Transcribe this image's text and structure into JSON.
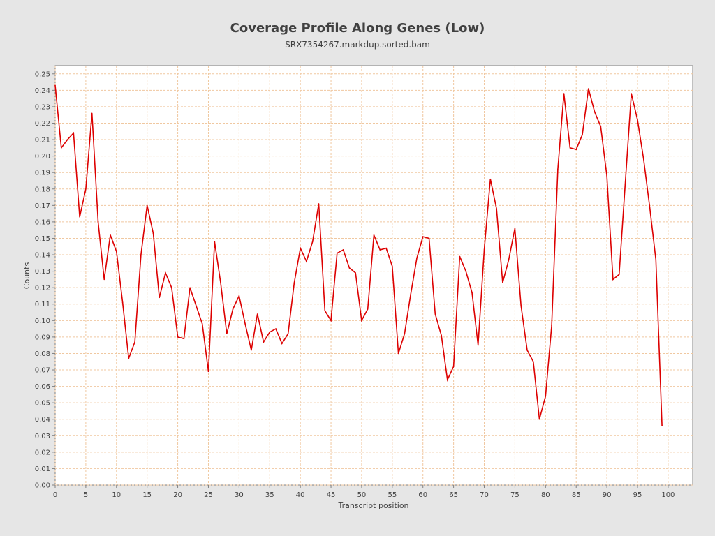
{
  "chart_data": {
    "type": "line",
    "title": "Coverage Profile Along Genes (Low)",
    "subtitle": "SRX7354267.markdup.sorted.bam",
    "xlabel": "Transcript position",
    "ylabel": "Counts",
    "xlim": [
      0,
      104
    ],
    "ylim": [
      0,
      0.255
    ],
    "x_ticks": [
      "0",
      "5",
      "10",
      "15",
      "20",
      "25",
      "30",
      "35",
      "40",
      "45",
      "50",
      "55",
      "60",
      "65",
      "70",
      "75",
      "80",
      "85",
      "90",
      "95",
      "100"
    ],
    "y_ticks": [
      "0.00",
      "0.01",
      "0.02",
      "0.03",
      "0.04",
      "0.05",
      "0.06",
      "0.07",
      "0.08",
      "0.09",
      "0.10",
      "0.11",
      "0.12",
      "0.13",
      "0.14",
      "0.15",
      "0.16",
      "0.17",
      "0.18",
      "0.19",
      "0.20",
      "0.21",
      "0.22",
      "0.23",
      "0.24",
      "0.25"
    ],
    "grid": true,
    "colors": {
      "line": "#dd0000",
      "grid": "#f0c8a0",
      "plot_bg": "#ffffff",
      "page_bg": "#e6e6e6"
    },
    "series": [
      {
        "x": [
          0,
          1,
          2,
          3,
          4,
          5,
          6,
          7,
          8,
          9,
          10,
          11,
          12,
          13,
          14,
          15,
          16,
          17,
          18,
          19,
          20,
          21,
          22,
          23,
          24,
          25,
          26,
          27,
          28,
          29,
          30,
          31,
          32,
          33,
          34,
          35,
          36,
          37,
          38,
          39,
          40,
          41,
          42,
          43,
          44,
          45,
          46,
          47,
          48,
          49,
          50,
          51,
          52,
          53,
          54,
          55,
          56,
          57,
          58,
          59,
          60,
          61,
          62,
          63,
          64,
          65,
          66,
          67,
          68,
          69,
          70,
          71,
          72,
          73,
          74,
          75,
          76,
          77,
          78,
          79,
          80,
          81,
          82,
          83,
          84,
          85,
          86,
          87,
          88,
          89,
          90,
          91,
          92,
          93,
          94,
          95,
          96,
          97,
          98,
          99
        ],
        "values": [
          0.243,
          0.205,
          0.21,
          0.214,
          0.163,
          0.18,
          0.226,
          0.16,
          0.125,
          0.152,
          0.142,
          0.111,
          0.077,
          0.087,
          0.14,
          0.17,
          0.153,
          0.114,
          0.129,
          0.12,
          0.09,
          0.089,
          0.12,
          0.109,
          0.098,
          0.069,
          0.148,
          0.123,
          0.092,
          0.107,
          0.115,
          0.098,
          0.082,
          0.104,
          0.087,
          0.093,
          0.095,
          0.086,
          0.092,
          0.123,
          0.144,
          0.136,
          0.148,
          0.171,
          0.106,
          0.1,
          0.141,
          0.143,
          0.132,
          0.129,
          0.1,
          0.107,
          0.152,
          0.143,
          0.144,
          0.133,
          0.08,
          0.092,
          0.116,
          0.138,
          0.151,
          0.15,
          0.104,
          0.091,
          0.064,
          0.072,
          0.139,
          0.13,
          0.117,
          0.085,
          0.143,
          0.186,
          0.168,
          0.123,
          0.137,
          0.156,
          0.109,
          0.082,
          0.075,
          0.04,
          0.054,
          0.097,
          0.192,
          0.238,
          0.205,
          0.204,
          0.213,
          0.241,
          0.227,
          0.218,
          0.188,
          0.125,
          0.128,
          0.183,
          0.238,
          0.222,
          0.198,
          0.169,
          0.137,
          0.036
        ]
      }
    ]
  }
}
